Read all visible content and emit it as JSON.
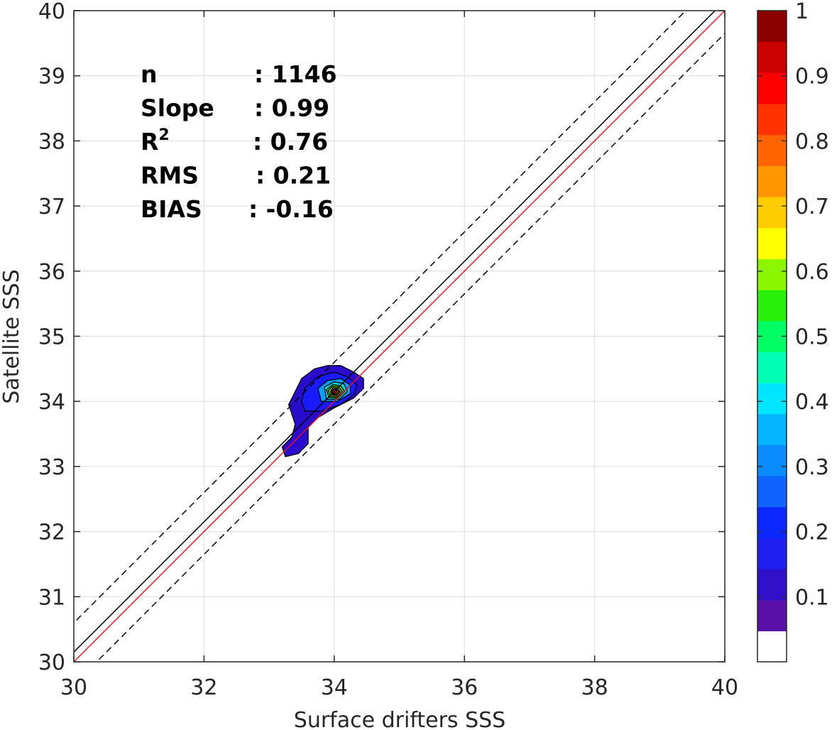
{
  "chart_data": {
    "type": "contour",
    "xlabel": "Surface drifters SSS",
    "ylabel": "Satellite SSS",
    "xlim": [
      30,
      40
    ],
    "ylim": [
      30,
      40
    ],
    "xticks": [
      "30",
      "32",
      "34",
      "36",
      "38",
      "40"
    ],
    "yticks": [
      "30",
      "31",
      "32",
      "33",
      "34",
      "35",
      "36",
      "37",
      "38",
      "39",
      "40"
    ],
    "grid": true,
    "stats": [
      {
        "label": "n",
        "value": ": 1146"
      },
      {
        "label": "Slope",
        "value": ": 0.99"
      },
      {
        "label": "R",
        "sup": "2",
        "value": ": 0.76"
      },
      {
        "label": "RMS",
        "value": ": 0.21"
      },
      {
        "label": "BIAS",
        "value": ": -0.16"
      }
    ],
    "reference_lines": [
      {
        "kind": "identity",
        "style": "solid",
        "color": "#000000",
        "intercept": 0.15,
        "slope": 1.0
      },
      {
        "kind": "upper-bound",
        "style": "dashed",
        "color": "#000000",
        "intercept": 0.6,
        "slope": 1.0
      },
      {
        "kind": "lower-bound",
        "style": "dashed",
        "color": "#000000",
        "intercept": -0.35,
        "slope": 1.0
      },
      {
        "kind": "fit",
        "style": "solid",
        "color": "#e8141e",
        "intercept": 0.0,
        "slope": 1.0
      }
    ],
    "density_peak": {
      "x": 34.0,
      "y": 34.15
    },
    "contour_levels": [
      {
        "level": 0.1,
        "color": "#2a0dcc",
        "polygon": [
          [
            33.25,
            33.15
          ],
          [
            33.45,
            33.2
          ],
          [
            33.6,
            33.35
          ],
          [
            33.6,
            33.6
          ],
          [
            33.75,
            33.75
          ],
          [
            34.0,
            33.9
          ],
          [
            34.3,
            34.05
          ],
          [
            34.45,
            34.2
          ],
          [
            34.45,
            34.35
          ],
          [
            34.3,
            34.45
          ],
          [
            34.1,
            34.55
          ],
          [
            33.9,
            34.55
          ],
          [
            33.7,
            34.5
          ],
          [
            33.5,
            34.35
          ],
          [
            33.4,
            34.15
          ],
          [
            33.3,
            33.95
          ],
          [
            33.4,
            33.65
          ],
          [
            33.35,
            33.45
          ],
          [
            33.2,
            33.3
          ]
        ]
      },
      {
        "level": 0.2,
        "color": "#1a1aff",
        "polygon": [
          [
            33.55,
            33.85
          ],
          [
            33.8,
            33.85
          ],
          [
            34.1,
            33.95
          ],
          [
            34.3,
            34.1
          ],
          [
            34.35,
            34.25
          ],
          [
            34.2,
            34.38
          ],
          [
            34.0,
            34.45
          ],
          [
            33.75,
            34.38
          ],
          [
            33.55,
            34.2
          ],
          [
            33.5,
            34.0
          ]
        ]
      },
      {
        "level": 0.3,
        "color": "#0a9eff",
        "polygon": [
          [
            33.8,
            34.0
          ],
          [
            34.05,
            34.0
          ],
          [
            34.25,
            34.12
          ],
          [
            34.25,
            34.25
          ],
          [
            34.1,
            34.35
          ],
          [
            33.9,
            34.32
          ],
          [
            33.75,
            34.2
          ]
        ]
      },
      {
        "level": 0.4,
        "color": "#00e0e0",
        "polygon": [
          [
            33.88,
            34.03
          ],
          [
            34.08,
            34.03
          ],
          [
            34.2,
            34.15
          ],
          [
            34.15,
            34.27
          ],
          [
            34.0,
            34.3
          ],
          [
            33.85,
            34.22
          ]
        ]
      },
      {
        "level": 0.5,
        "color": "#28dc28",
        "polygon": [
          [
            33.92,
            34.06
          ],
          [
            34.06,
            34.05
          ],
          [
            34.16,
            34.15
          ],
          [
            34.1,
            34.24
          ],
          [
            33.98,
            34.26
          ],
          [
            33.88,
            34.18
          ]
        ]
      },
      {
        "level": 0.6,
        "color": "#c8e614",
        "polygon": [
          [
            33.95,
            34.08
          ],
          [
            34.05,
            34.07
          ],
          [
            34.12,
            34.15
          ],
          [
            34.07,
            34.22
          ],
          [
            33.97,
            34.23
          ],
          [
            33.91,
            34.16
          ]
        ]
      },
      {
        "level": 0.7,
        "color": "#ffc000",
        "polygon": [
          [
            33.97,
            34.1
          ],
          [
            34.04,
            34.09
          ],
          [
            34.09,
            34.15
          ],
          [
            34.05,
            34.2
          ],
          [
            33.98,
            34.21
          ],
          [
            33.94,
            34.15
          ]
        ]
      },
      {
        "level": 0.8,
        "color": "#ff6000",
        "polygon": [
          [
            33.98,
            34.11
          ],
          [
            34.03,
            34.1
          ],
          [
            34.07,
            34.15
          ],
          [
            34.03,
            34.19
          ],
          [
            33.98,
            34.19
          ],
          [
            33.96,
            34.15
          ]
        ]
      },
      {
        "level": 0.9,
        "color": "#e60000",
        "polygon": [
          [
            33.99,
            34.12
          ],
          [
            34.02,
            34.12
          ],
          [
            34.04,
            34.15
          ],
          [
            34.02,
            34.18
          ],
          [
            33.99,
            34.18
          ],
          [
            33.97,
            34.15
          ]
        ]
      }
    ],
    "colorbar": {
      "min": 0,
      "max": 1,
      "ticks": [
        "0.1",
        "0.2",
        "0.3",
        "0.4",
        "0.5",
        "0.6",
        "0.7",
        "0.8",
        "0.9",
        "1"
      ],
      "colors": [
        "#ffffff",
        "#5a0fa8",
        "#3010c8",
        "#1e1ef0",
        "#0a28ff",
        "#0f64ff",
        "#0a8cff",
        "#05b4ff",
        "#00e6ff",
        "#00ffb4",
        "#00ff64",
        "#28f00a",
        "#8cf500",
        "#ffff00",
        "#ffcc00",
        "#ff9600",
        "#ff6400",
        "#ff3200",
        "#ff0000",
        "#cc0000",
        "#8c0000"
      ]
    }
  }
}
